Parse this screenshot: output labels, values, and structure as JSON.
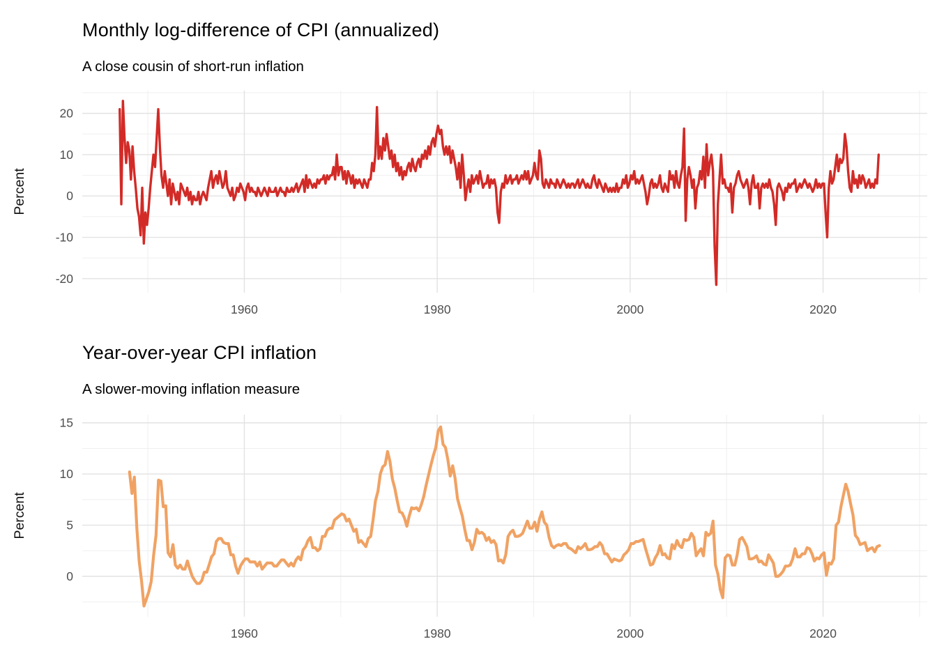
{
  "page": {
    "background": "#ffffff"
  },
  "chart_data": [
    {
      "type": "line",
      "title": "Monthly log-difference of CPI (annualized)",
      "subtitle": "A close cousin of short-run inflation",
      "xlabel": "",
      "ylabel": "Percent",
      "legend": "none",
      "grid": "major+minor",
      "grid_major_color": "#e2e2e2",
      "grid_minor_color": "#efefef",
      "tick_label_color": "#4d4d4d",
      "line_color": "#d22b27",
      "line_width": 3.4,
      "xlim": [
        1943.2,
        2030.8
      ],
      "ylim": [
        -23.4,
        25.5
      ],
      "x_ticks": [
        1960,
        1980,
        2000,
        2020
      ],
      "x_minor": [
        1950,
        1970,
        1990,
        2010,
        2030
      ],
      "y_ticks": [
        20,
        10,
        0,
        -10,
        -20
      ],
      "y_minor": [
        25,
        15,
        5,
        -5,
        -15
      ],
      "series": {
        "name": "monthly-log-diff-cpi-annualized",
        "x_start": 1947.08,
        "x_step": 0.1667,
        "values": [
          21,
          -2,
          23,
          14,
          8,
          13,
          11,
          4,
          12,
          6,
          2,
          -3,
          -5,
          -9.5,
          2,
          -11.5,
          -4,
          -7,
          -3,
          2,
          6,
          10,
          7,
          14,
          21,
          12,
          5,
          2,
          6,
          3,
          0,
          4,
          -2,
          3,
          1,
          -1,
          1,
          -2,
          3,
          2,
          1,
          0,
          2,
          -1,
          1,
          -2,
          0,
          -1,
          -1,
          1,
          -2,
          0,
          1,
          0,
          -1,
          2,
          4,
          6,
          2,
          4,
          5,
          3,
          6,
          4,
          2,
          3,
          6,
          2,
          1,
          0,
          2,
          -1,
          0,
          2,
          1,
          3,
          2,
          1,
          -1,
          2,
          3,
          1,
          2,
          1,
          1,
          0,
          2,
          1,
          0,
          1,
          2,
          1,
          0,
          2,
          1,
          1,
          1,
          2,
          0,
          1,
          2,
          1,
          1,
          0,
          2,
          1,
          1,
          2,
          1,
          2,
          3,
          1,
          2,
          3,
          4,
          1,
          5,
          2,
          4,
          3,
          2,
          3,
          2,
          4,
          3,
          4,
          4,
          5,
          3,
          5,
          4,
          5,
          5,
          7,
          4,
          10,
          5,
          7,
          7,
          4,
          6,
          3,
          6,
          5,
          3,
          5,
          2,
          4,
          3,
          4,
          3,
          2,
          4,
          3,
          2,
          4,
          4,
          8,
          6,
          10,
          21.5,
          9,
          12,
          9,
          14,
          11,
          15,
          12,
          9,
          11,
          7,
          10,
          6,
          8,
          5,
          7,
          4,
          6,
          5,
          7,
          8,
          6,
          9,
          7,
          6,
          8,
          9,
          7,
          10,
          9,
          11,
          9,
          12,
          10,
          13,
          14,
          12,
          15,
          17,
          15,
          16,
          12,
          10,
          12,
          10,
          12,
          8,
          11,
          9,
          7,
          4,
          8,
          2,
          10,
          5,
          -1,
          2,
          4,
          1,
          5,
          3,
          4,
          5,
          3,
          6,
          4,
          2,
          3,
          3,
          5,
          2,
          4,
          3,
          4,
          2,
          -4,
          -6.5,
          1,
          3,
          2,
          5,
          3,
          4,
          5,
          3,
          4,
          4,
          5,
          3,
          4,
          5,
          4,
          6,
          4,
          6,
          3,
          4,
          5,
          8,
          5,
          4,
          11,
          9,
          3,
          2,
          4,
          3,
          2,
          4,
          3,
          3,
          2,
          4,
          3,
          2,
          3,
          4,
          3,
          2,
          3,
          2,
          3,
          3,
          2,
          3,
          4,
          2,
          3,
          4,
          3,
          2,
          3,
          2,
          2,
          4,
          5,
          3,
          2,
          4,
          3,
          2,
          1,
          3,
          2,
          1,
          2,
          1,
          2,
          1,
          3,
          1,
          2,
          2,
          4,
          3,
          5,
          2,
          3,
          5,
          4,
          6,
          3,
          4,
          3,
          4,
          5,
          3,
          1,
          -2,
          0,
          3,
          4,
          2,
          3,
          2,
          3,
          5,
          2,
          1,
          3,
          2,
          1,
          6,
          4,
          5,
          2,
          6,
          3,
          2,
          5,
          7,
          16.3,
          -6,
          4,
          7,
          5,
          2,
          4,
          -3,
          2,
          3,
          6,
          4,
          9.5,
          2,
          12.5,
          5,
          8,
          10,
          6,
          -12,
          -21.5,
          -2,
          4,
          10,
          3,
          4,
          2,
          2,
          1,
          3,
          -4,
          2,
          3,
          5,
          6,
          4,
          3,
          2,
          3,
          4,
          2,
          -2,
          3,
          5,
          2,
          2,
          3,
          -3,
          2,
          3,
          2,
          3,
          2,
          4,
          2,
          1,
          -2,
          -7,
          2,
          3,
          2,
          1,
          -1,
          2,
          1,
          3,
          2,
          3,
          3,
          4,
          1,
          2,
          3,
          2,
          3,
          4,
          3,
          2,
          3,
          2,
          1,
          2,
          4,
          2,
          3,
          2,
          3,
          3,
          -4,
          -10,
          2,
          6,
          3,
          4,
          7,
          10,
          6,
          9,
          8,
          9,
          15,
          12,
          6,
          2,
          1,
          6,
          3,
          4,
          2,
          5,
          3,
          5,
          4,
          2,
          3,
          4,
          2,
          3,
          2,
          4,
          3,
          10
        ]
      }
    },
    {
      "type": "line",
      "title": "Year-over-year CPI inflation",
      "subtitle": "A slower-moving inflation measure",
      "xlabel": "",
      "ylabel": "Percent",
      "legend": "none",
      "grid": "major+minor",
      "grid_major_color": "#e2e2e2",
      "grid_minor_color": "#efefef",
      "tick_label_color": "#4d4d4d",
      "line_color": "#f0a263",
      "line_width": 4.2,
      "xlim": [
        1943.2,
        2030.8
      ],
      "ylim": [
        -3.95,
        15.8
      ],
      "x_ticks": [
        1960,
        1980,
        2000,
        2020
      ],
      "x_minor": [
        1950,
        1970,
        1990,
        2010,
        2030
      ],
      "y_ticks": [
        15,
        10,
        5,
        0
      ],
      "y_minor": [
        12.5,
        7.5,
        2.5,
        -2.5
      ],
      "series": {
        "name": "yoy-cpi-inflation",
        "x_start": 1948.1,
        "x_step": 0.25,
        "values": [
          10.2,
          8.1,
          9.7,
          4.8,
          1.5,
          -0.5,
          -2.9,
          -2.2,
          -1.5,
          -0.5,
          2.1,
          4.0,
          9.4,
          9.3,
          6.8,
          6.9,
          2.3,
          1.9,
          3.1,
          1.1,
          0.8,
          1.1,
          0.7,
          0.7,
          1.5,
          0.7,
          0.0,
          -0.4,
          -0.7,
          -0.7,
          -0.4,
          0.4,
          0.4,
          1.1,
          1.9,
          2.2,
          3.4,
          3.7,
          3.7,
          3.3,
          3.2,
          3.2,
          2.1,
          2.1,
          1.0,
          0.3,
          1.0,
          1.4,
          1.7,
          1.7,
          1.4,
          1.4,
          1.4,
          1.0,
          1.4,
          0.7,
          1.0,
          1.3,
          1.3,
          1.3,
          1.0,
          1.0,
          1.3,
          1.6,
          1.6,
          1.3,
          1.0,
          1.3,
          1.0,
          1.6,
          1.9,
          1.6,
          2.6,
          2.9,
          3.5,
          3.8,
          2.8,
          2.8,
          2.5,
          2.7,
          3.9,
          3.9,
          4.5,
          4.7,
          4.7,
          5.5,
          5.7,
          5.9,
          6.1,
          6.0,
          5.4,
          5.6,
          5.0,
          4.4,
          4.6,
          3.3,
          3.5,
          3.2,
          2.9,
          3.7,
          3.9,
          5.5,
          7.4,
          8.3,
          10.0,
          10.7,
          10.9,
          12.2,
          11.2,
          9.5,
          8.6,
          7.4,
          6.3,
          6.2,
          5.7,
          4.9,
          5.9,
          6.7,
          6.6,
          6.7,
          6.4,
          7.0,
          7.8,
          8.9,
          9.9,
          10.9,
          11.8,
          12.6,
          14.2,
          14.6,
          12.9,
          12.6,
          11.4,
          9.8,
          10.8,
          9.6,
          7.6,
          6.7,
          5.9,
          4.6,
          3.5,
          3.5,
          2.6,
          3.3,
          4.6,
          4.2,
          4.3,
          4.1,
          3.5,
          3.8,
          3.3,
          3.5,
          3.1,
          1.5,
          1.6,
          1.3,
          2.1,
          3.9,
          4.3,
          4.5,
          3.9,
          3.9,
          4.0,
          4.2,
          4.8,
          5.4,
          4.7,
          4.7,
          5.3,
          4.4,
          5.6,
          6.3,
          5.3,
          5.0,
          3.8,
          3.0,
          2.8,
          3.0,
          3.1,
          3.0,
          3.2,
          3.2,
          2.8,
          2.7,
          2.5,
          2.3,
          2.9,
          2.7,
          2.9,
          3.2,
          2.6,
          2.6,
          2.7,
          2.9,
          2.9,
          3.3,
          3.0,
          2.2,
          2.2,
          1.8,
          1.4,
          1.7,
          1.6,
          1.5,
          1.6,
          2.1,
          2.3,
          2.6,
          3.2,
          3.2,
          3.4,
          3.4,
          3.5,
          3.6,
          2.7,
          1.9,
          1.1,
          1.2,
          1.8,
          2.2,
          3.0,
          2.1,
          2.2,
          1.8,
          1.7,
          3.1,
          2.7,
          3.5,
          3.0,
          2.8,
          3.6,
          3.5,
          3.6,
          4.2,
          3.8,
          2.0,
          2.4,
          2.7,
          2.0,
          4.3,
          4.0,
          4.2,
          5.4,
          1.1,
          0.2,
          -1.3,
          -2.1,
          1.8,
          2.1,
          2.0,
          1.1,
          1.1,
          2.1,
          3.6,
          3.8,
          3.4,
          2.9,
          1.7,
          1.7,
          1.8,
          2.0,
          1.4,
          1.5,
          1.2,
          1.1,
          2.1,
          1.7,
          1.3,
          0.0,
          0.0,
          0.2,
          0.5,
          1.0,
          1.0,
          1.1,
          1.7,
          2.7,
          1.9,
          1.9,
          2.2,
          2.2,
          2.8,
          2.7,
          2.2,
          1.5,
          1.8,
          1.7,
          2.1,
          2.3,
          0.1,
          1.3,
          1.2,
          1.7,
          5.0,
          5.3,
          6.8,
          7.9,
          9.0,
          8.3,
          7.1,
          6.0,
          4.0,
          3.7,
          3.1,
          3.2,
          3.3,
          2.5,
          2.7,
          2.8,
          2.4,
          2.9,
          3.0
        ]
      }
    }
  ]
}
